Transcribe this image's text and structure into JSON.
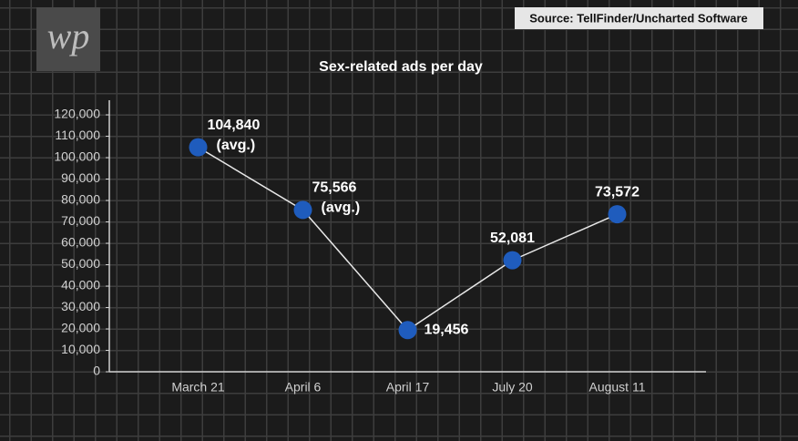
{
  "logo": "wp",
  "source": "Source: TellFinder/Uncharted Software",
  "chart_data": {
    "type": "line",
    "title": "Sex-related ads per day",
    "categories": [
      "March 21",
      "April 6",
      "April 17",
      "July 20",
      "August 11"
    ],
    "values": [
      104840,
      75566,
      19456,
      52081,
      73572
    ],
    "value_labels": [
      "104,840",
      "75,566",
      "19,456",
      "52,081",
      "73,572"
    ],
    "value_notes": [
      "(avg.)",
      "(avg.)",
      null,
      null,
      null
    ],
    "color": "#1f5cbd",
    "line_color": "#e8e8e8",
    "ylim": [
      0,
      120000
    ],
    "yticks": [
      0,
      {
        "value": 10000,
        "label": "10,000"
      },
      {
        "value": 20000,
        "label": "20,000"
      },
      {
        "value": 30000,
        "label": "30,000"
      },
      {
        "value": 40000,
        "label": "40,000"
      },
      {
        "value": 50000,
        "label": "50,000"
      },
      {
        "value": 60000,
        "label": "60,000"
      },
      {
        "value": 70000,
        "label": "70,000"
      },
      {
        "value": 80000,
        "label": "80,000"
      },
      {
        "value": 90000,
        "label": "90,000"
      },
      {
        "value": 100000,
        "label": "100,000"
      },
      {
        "value": 110000,
        "label": "110,000"
      },
      {
        "value": 120000,
        "label": "120,000"
      }
    ]
  }
}
